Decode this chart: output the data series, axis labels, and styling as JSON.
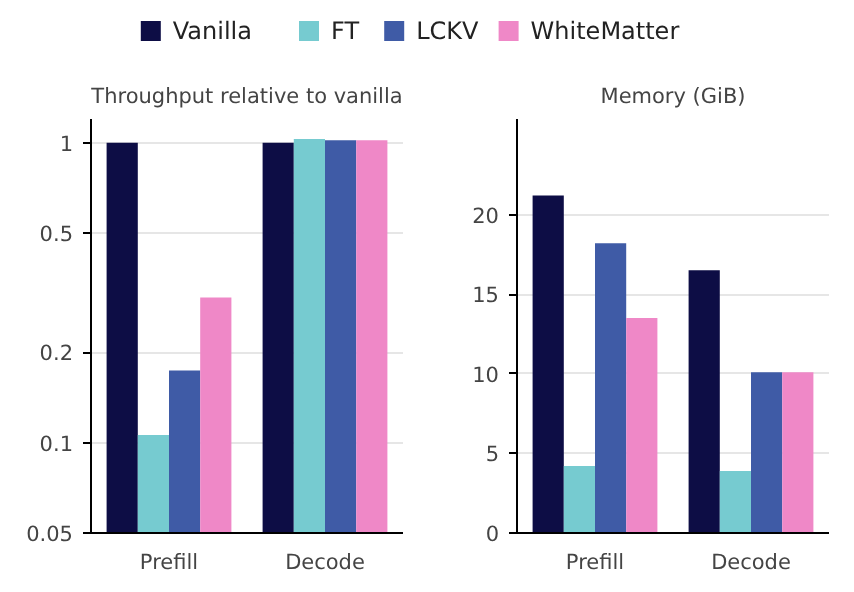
{
  "chart_data": [
    {
      "type": "bar",
      "title": "Throughput relative to vanilla",
      "categories": [
        "Prefill",
        "Decode"
      ],
      "log": "y",
      "ylim": [
        0.05,
        1.2
      ],
      "yticks": [
        0.05,
        0.1,
        0.2,
        0.5,
        1
      ],
      "grid": "y",
      "legend": "top",
      "series": [
        {
          "name": "Vanilla",
          "color": "#0d0d45",
          "values": [
            1,
            1
          ]
        },
        {
          "name": "FT",
          "color": "#76cbd0",
          "values": [
            0.106,
            1.03
          ]
        },
        {
          "name": "LCKV",
          "color": "#3f5ba6",
          "values": [
            0.174,
            1.02
          ]
        },
        {
          "name": "WhiteMatter",
          "color": "#ef88c7",
          "values": [
            0.305,
            1.02
          ]
        }
      ]
    },
    {
      "type": "bar",
      "title": "Memory (GiB)",
      "categories": [
        "Prefill",
        "Decode"
      ],
      "ylim": [
        0,
        26
      ],
      "yticks": [
        0,
        5,
        10,
        15,
        20
      ],
      "grid": "y",
      "legend": "top",
      "series": [
        {
          "name": "Vanilla",
          "color": "#0d0d45",
          "values": [
            21.2,
            16.5
          ]
        },
        {
          "name": "FT",
          "color": "#76cbd0",
          "values": [
            4.2,
            3.9
          ]
        },
        {
          "name": "LCKV",
          "color": "#3f5ba6",
          "values": [
            18.2,
            10.1
          ]
        },
        {
          "name": "WhiteMatter",
          "color": "#ef88c7",
          "values": [
            13.5,
            10.1
          ]
        }
      ]
    }
  ]
}
